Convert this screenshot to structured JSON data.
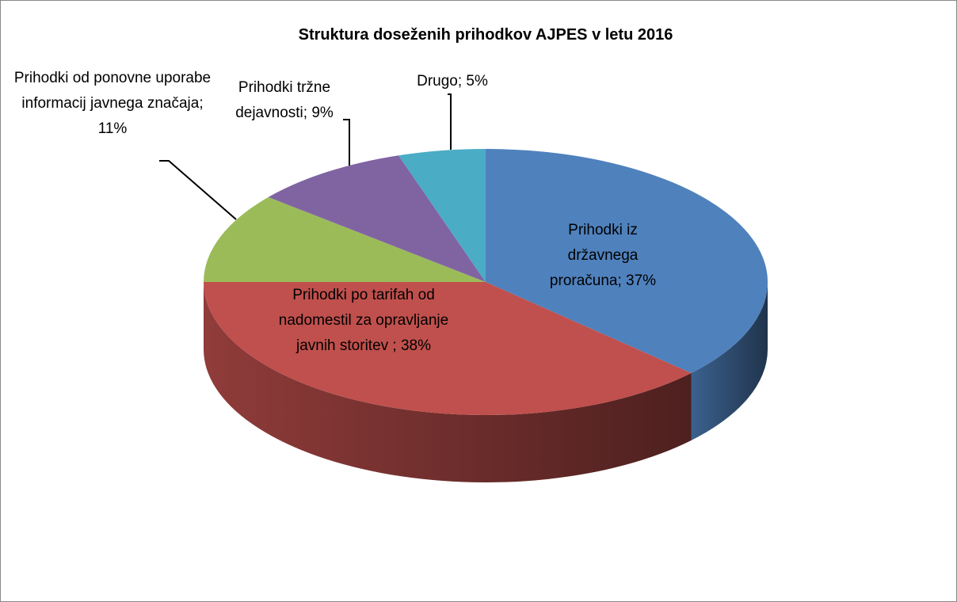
{
  "chart_data": {
    "type": "pie3d",
    "title": "Struktura doseženih prihodkov AJPES v letu 2016",
    "categories": [
      "Prihodki iz državnega proračuna",
      "Prihodki po tarifah od nadomestil za opravljanje javnih storitev",
      "Prihodki od ponovne uporabe informacij javnega značaja",
      "Prihodki tržne dejavnosti",
      "Drugo"
    ],
    "values": [
      37,
      38,
      11,
      9,
      5
    ],
    "value_labels": [
      "; 37%",
      " ; 38%",
      "; 11%",
      "; 9%",
      "; 5%"
    ],
    "colors": [
      "#4f81bd",
      "#c0504d",
      "#9bbb59",
      "#8064a2",
      "#4bacc6"
    ]
  }
}
